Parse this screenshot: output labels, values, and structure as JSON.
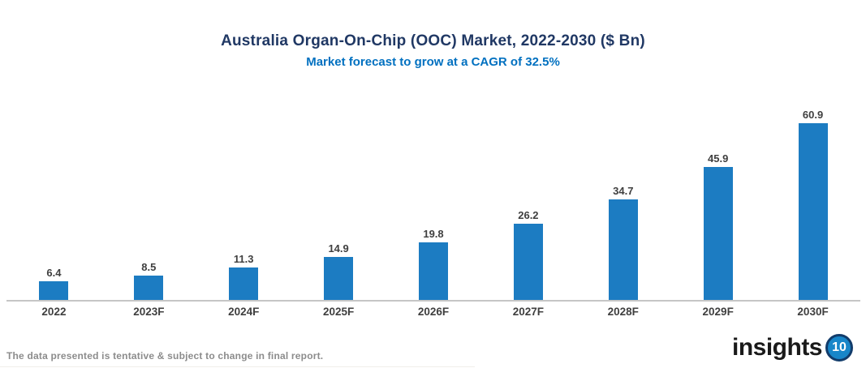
{
  "header": {
    "title": "Australia Organ-On-Chip (OOC) Market, 2022-2030 ($ Bn)",
    "subtitle": "Market forecast to grow at a CAGR of 32.5%"
  },
  "footer": {
    "disclaimer": "The data presented is tentative & subject to change in final report."
  },
  "logo": {
    "text": "insights",
    "badge": "10"
  },
  "colors": {
    "bar": "#1C7CC2",
    "title": "#203864",
    "subtitle": "#0070C0",
    "labels": "#3F3F3F",
    "axis_line": "#C6C6C6",
    "footer_text": "#8C8C8C",
    "logo_badge_fill": "#1886C9",
    "logo_badge_ring": "#123C6B"
  },
  "chart_data": {
    "type": "bar",
    "categories": [
      "2022",
      "2023F",
      "2024F",
      "2025F",
      "2026F",
      "2027F",
      "2028F",
      "2029F",
      "2030F"
    ],
    "values": [
      6.4,
      8.5,
      11.3,
      14.9,
      19.8,
      26.2,
      34.7,
      45.9,
      60.9
    ],
    "title": "Australia Organ-On-Chip (OOC) Market, 2022-2030 ($ Bn)",
    "subtitle": "Market forecast to grow at a CAGR of 32.5%",
    "xlabel": "",
    "ylabel": "",
    "ylim": [
      0,
      65
    ],
    "grid": false,
    "legend": false,
    "data_labels": true,
    "value_format": "one_decimal"
  }
}
